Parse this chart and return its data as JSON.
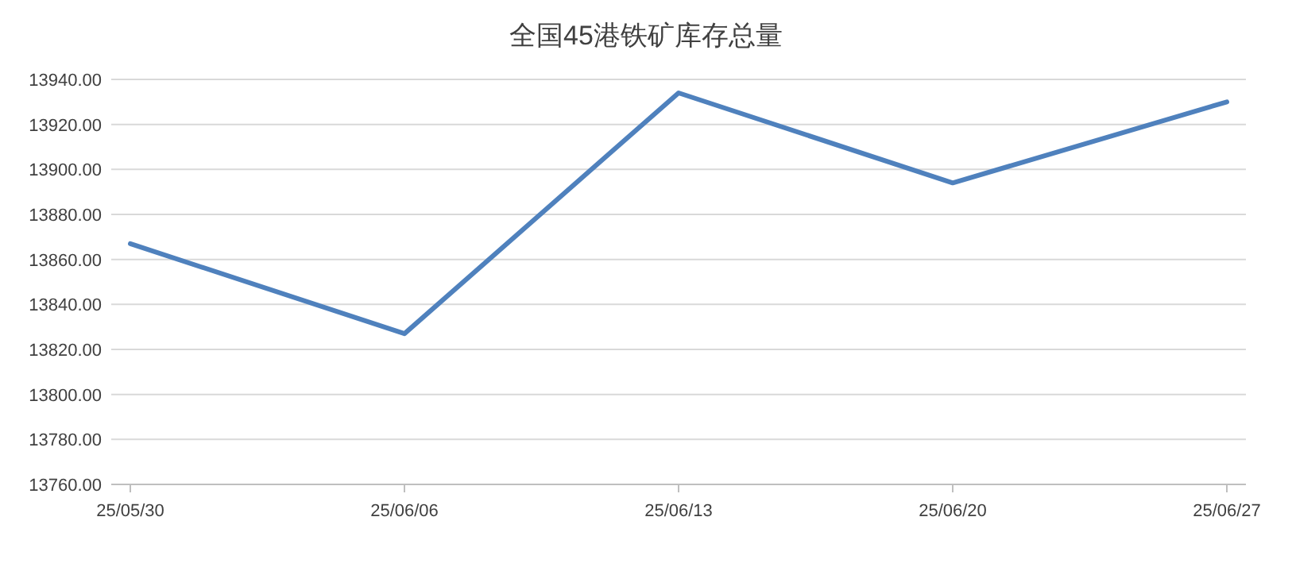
{
  "chart_data": {
    "type": "line",
    "title": "全国45港铁矿库存总量",
    "categories": [
      "25/05/30",
      "25/06/06",
      "25/06/13",
      "25/06/20",
      "25/06/27"
    ],
    "series": [
      {
        "color": "#4f81bd",
        "values": [
          13867,
          13827,
          13934,
          13894,
          13930
        ]
      }
    ],
    "ylim": [
      13760,
      13940
    ],
    "yticks": [
      {
        "value": 13760,
        "label": "13760.00"
      },
      {
        "value": 13780,
        "label": "13780.00"
      },
      {
        "value": 13800,
        "label": "13800.00"
      },
      {
        "value": 13820,
        "label": "13820.00"
      },
      {
        "value": 13840,
        "label": "13840.00"
      },
      {
        "value": 13860,
        "label": "13860.00"
      },
      {
        "value": 13880,
        "label": "13880.00"
      },
      {
        "value": 13900,
        "label": "13900.00"
      },
      {
        "value": 13920,
        "label": "13920.00"
      },
      {
        "value": 13940,
        "label": "13940.00"
      }
    ],
    "grid": "y",
    "marker": "none",
    "line_style": "solid"
  }
}
